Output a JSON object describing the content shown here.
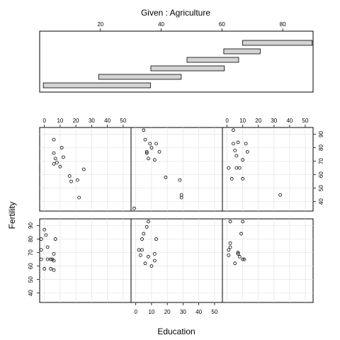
{
  "chart_data": {
    "type": "scatter",
    "title": "Given : Agriculture",
    "xlabel": "Education",
    "ylabel": "Fertility",
    "x_ticks": [
      0,
      10,
      20,
      30,
      40,
      50
    ],
    "y_ticks": [
      40,
      50,
      60,
      70,
      80,
      90
    ],
    "given_ticks": [
      20,
      40,
      60,
      80
    ],
    "xlim": [
      -3,
      55
    ],
    "ylim": [
      33,
      95
    ],
    "given_range": [
      0,
      90
    ],
    "grid": true,
    "intervals": [
      [
        1.2,
        36.5
      ],
      [
        19.4,
        46.6
      ],
      [
        36.6,
        60.8
      ],
      [
        48.5,
        65.5
      ],
      [
        60.6,
        72.6
      ],
      [
        66.8,
        89.7
      ]
    ],
    "panels": [
      {
        "interval": 1,
        "points": [
          [
            -2,
            80
          ],
          [
            -2,
            72
          ],
          [
            -2,
            65
          ],
          [
            0,
            87
          ],
          [
            0,
            58
          ],
          [
            1,
            83
          ],
          [
            2,
            74
          ],
          [
            2,
            65
          ],
          [
            4,
            65
          ],
          [
            4,
            58
          ],
          [
            5,
            65
          ],
          [
            6,
            69
          ],
          [
            6,
            64
          ],
          [
            6,
            57
          ],
          [
            7,
            80
          ]
        ]
      },
      {
        "interval": 2,
        "points": [
          [
            2,
            72
          ],
          [
            3,
            68
          ],
          [
            4,
            80
          ],
          [
            4,
            72
          ],
          [
            5,
            84
          ],
          [
            6,
            62
          ],
          [
            7,
            89
          ],
          [
            8,
            93
          ],
          [
            8,
            67
          ],
          [
            10,
            60
          ],
          [
            12,
            69
          ],
          [
            12,
            64
          ],
          [
            13,
            80
          ]
        ]
      },
      {
        "interval": 3,
        "points": [
          [
            1,
            72
          ],
          [
            1,
            68
          ],
          [
            2,
            77
          ],
          [
            2,
            74
          ],
          [
            2,
            93
          ],
          [
            5,
            62
          ],
          [
            7,
            70
          ],
          [
            7,
            69
          ],
          [
            8,
            67
          ],
          [
            9,
            84
          ],
          [
            10,
            93
          ],
          [
            10,
            65
          ],
          [
            11,
            65
          ]
        ]
      },
      {
        "interval": 4,
        "points": [
          [
            6,
            86
          ],
          [
            6,
            76
          ],
          [
            6,
            68
          ],
          [
            7,
            72
          ],
          [
            8,
            69
          ],
          [
            10,
            66
          ],
          [
            11,
            80
          ],
          [
            12,
            73
          ],
          [
            16,
            59
          ],
          [
            17,
            55
          ],
          [
            21,
            56
          ],
          [
            22,
            43
          ],
          [
            25,
            64
          ]
        ]
      },
      {
        "interval": 5,
        "points": [
          [
            -1,
            35
          ],
          [
            5,
            93
          ],
          [
            6,
            86
          ],
          [
            7,
            77
          ],
          [
            7,
            76
          ],
          [
            8,
            72
          ],
          [
            9,
            83
          ],
          [
            10,
            80
          ],
          [
            12,
            71
          ],
          [
            13,
            83
          ],
          [
            15,
            77
          ],
          [
            19,
            58
          ],
          [
            28,
            56
          ],
          [
            29,
            45
          ],
          [
            29,
            43
          ]
        ]
      },
      {
        "interval": 6,
        "points": [
          [
            1,
            65
          ],
          [
            3,
            57
          ],
          [
            4,
            93
          ],
          [
            4,
            83
          ],
          [
            5,
            78
          ],
          [
            6,
            74
          ],
          [
            6,
            65
          ],
          [
            7,
            84
          ],
          [
            8,
            65
          ],
          [
            10,
            57
          ],
          [
            10,
            71
          ],
          [
            12,
            83
          ],
          [
            13,
            77
          ],
          [
            34,
            45
          ]
        ]
      }
    ]
  }
}
